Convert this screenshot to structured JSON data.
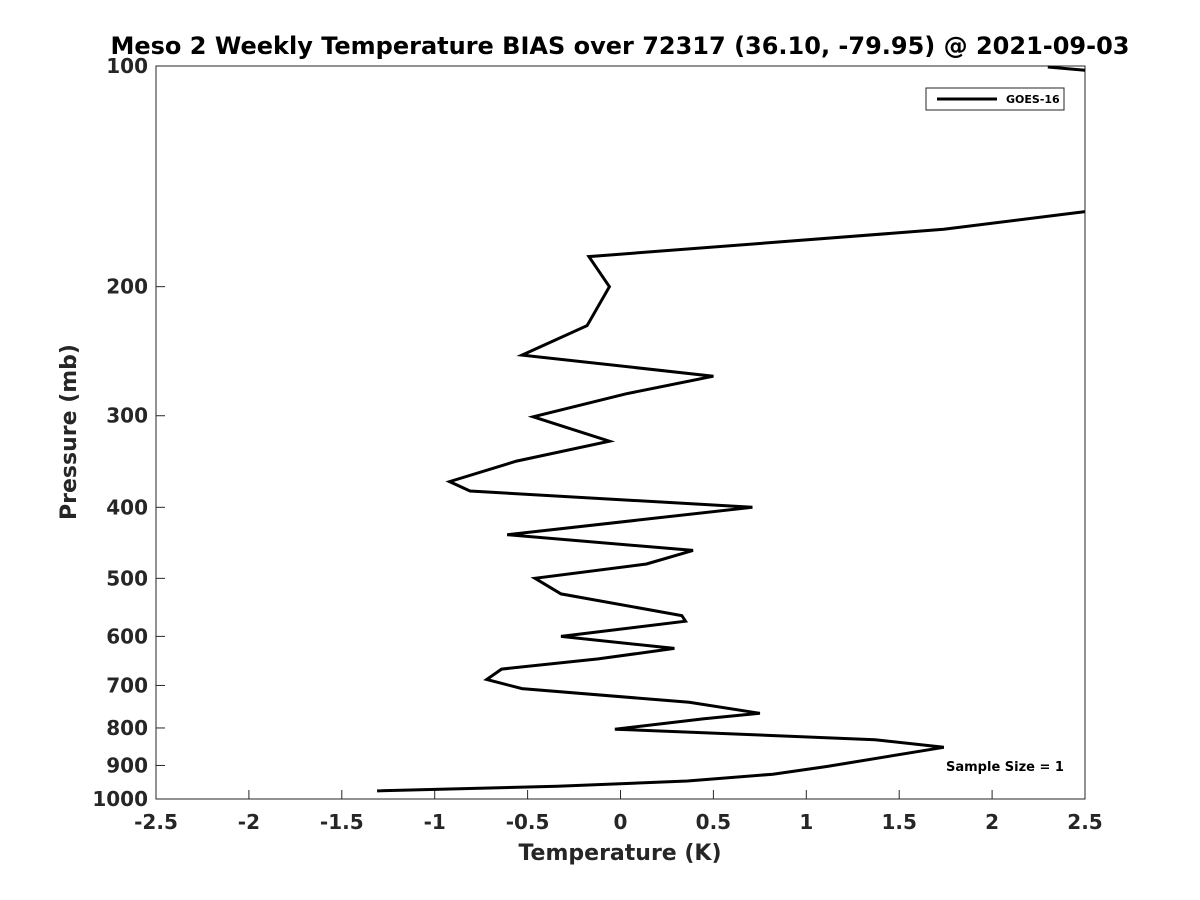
{
  "chart_data": {
    "type": "line",
    "title": "Meso 2 Weekly Temperature BIAS over 72317 (36.10, -79.95) @ 2021-09-03",
    "xlabel": "Temperature (K)",
    "ylabel": "Pressure (mb)",
    "xlim": [
      -2.5,
      2.5
    ],
    "ylim": [
      100,
      1000
    ],
    "y_scale": "log",
    "y_reversed": true,
    "x_ticks": [
      -2.5,
      -2,
      -1.5,
      -1,
      -0.5,
      0,
      0.5,
      1,
      1.5,
      2,
      2.5
    ],
    "x_tick_labels": [
      "-2.5",
      "-2",
      "-1.5",
      "-1",
      "-0.5",
      "0",
      "0.5",
      "1",
      "1.5",
      "2",
      "2.5"
    ],
    "y_ticks": [
      100,
      200,
      300,
      400,
      500,
      600,
      700,
      800,
      900,
      1000
    ],
    "y_tick_labels": [
      "100",
      "200",
      "300",
      "400",
      "500",
      "600",
      "700",
      "800",
      "900",
      "1000"
    ],
    "grid": false,
    "legend": {
      "position": "top-right",
      "entries": [
        "GOES-16"
      ]
    },
    "annotation": "Sample Size = 1",
    "series": [
      {
        "name": "GOES-16",
        "color": "#000000",
        "points": [
          [
            -1.31,
            975
          ],
          [
            -0.34,
            961
          ],
          [
            0.36,
            945
          ],
          [
            0.82,
            925
          ],
          [
            1.11,
            903
          ],
          [
            1.74,
            850
          ],
          [
            1.37,
            830
          ],
          [
            -0.03,
            803
          ],
          [
            0.45,
            777
          ],
          [
            0.75,
            764
          ],
          [
            0.37,
            738
          ],
          [
            -0.53,
            707
          ],
          [
            -0.72,
            687
          ],
          [
            -0.64,
            665
          ],
          [
            -0.12,
            644
          ],
          [
            0.29,
            623
          ],
          [
            -0.32,
            600
          ],
          [
            0.35,
            572
          ],
          [
            0.33,
            562
          ],
          [
            -0.32,
            525
          ],
          [
            -0.46,
            500
          ],
          [
            0.14,
            478
          ],
          [
            0.39,
            458
          ],
          [
            -0.61,
            436
          ],
          [
            0.71,
            400
          ],
          [
            -0.81,
            380
          ],
          [
            -0.92,
            369
          ],
          [
            -0.56,
            346
          ],
          [
            -0.06,
            325
          ],
          [
            -0.47,
            301
          ],
          [
            0.03,
            280
          ],
          [
            0.5,
            265
          ],
          [
            -0.53,
            248
          ],
          [
            -0.18,
            226
          ],
          [
            -0.06,
            200
          ],
          [
            -0.17,
            182
          ],
          [
            1.74,
            167
          ],
          [
            2.5,
            158
          ]
        ],
        "points_top": [
          [
            2.3,
            100
          ],
          [
            2.5,
            101
          ]
        ]
      }
    ]
  }
}
